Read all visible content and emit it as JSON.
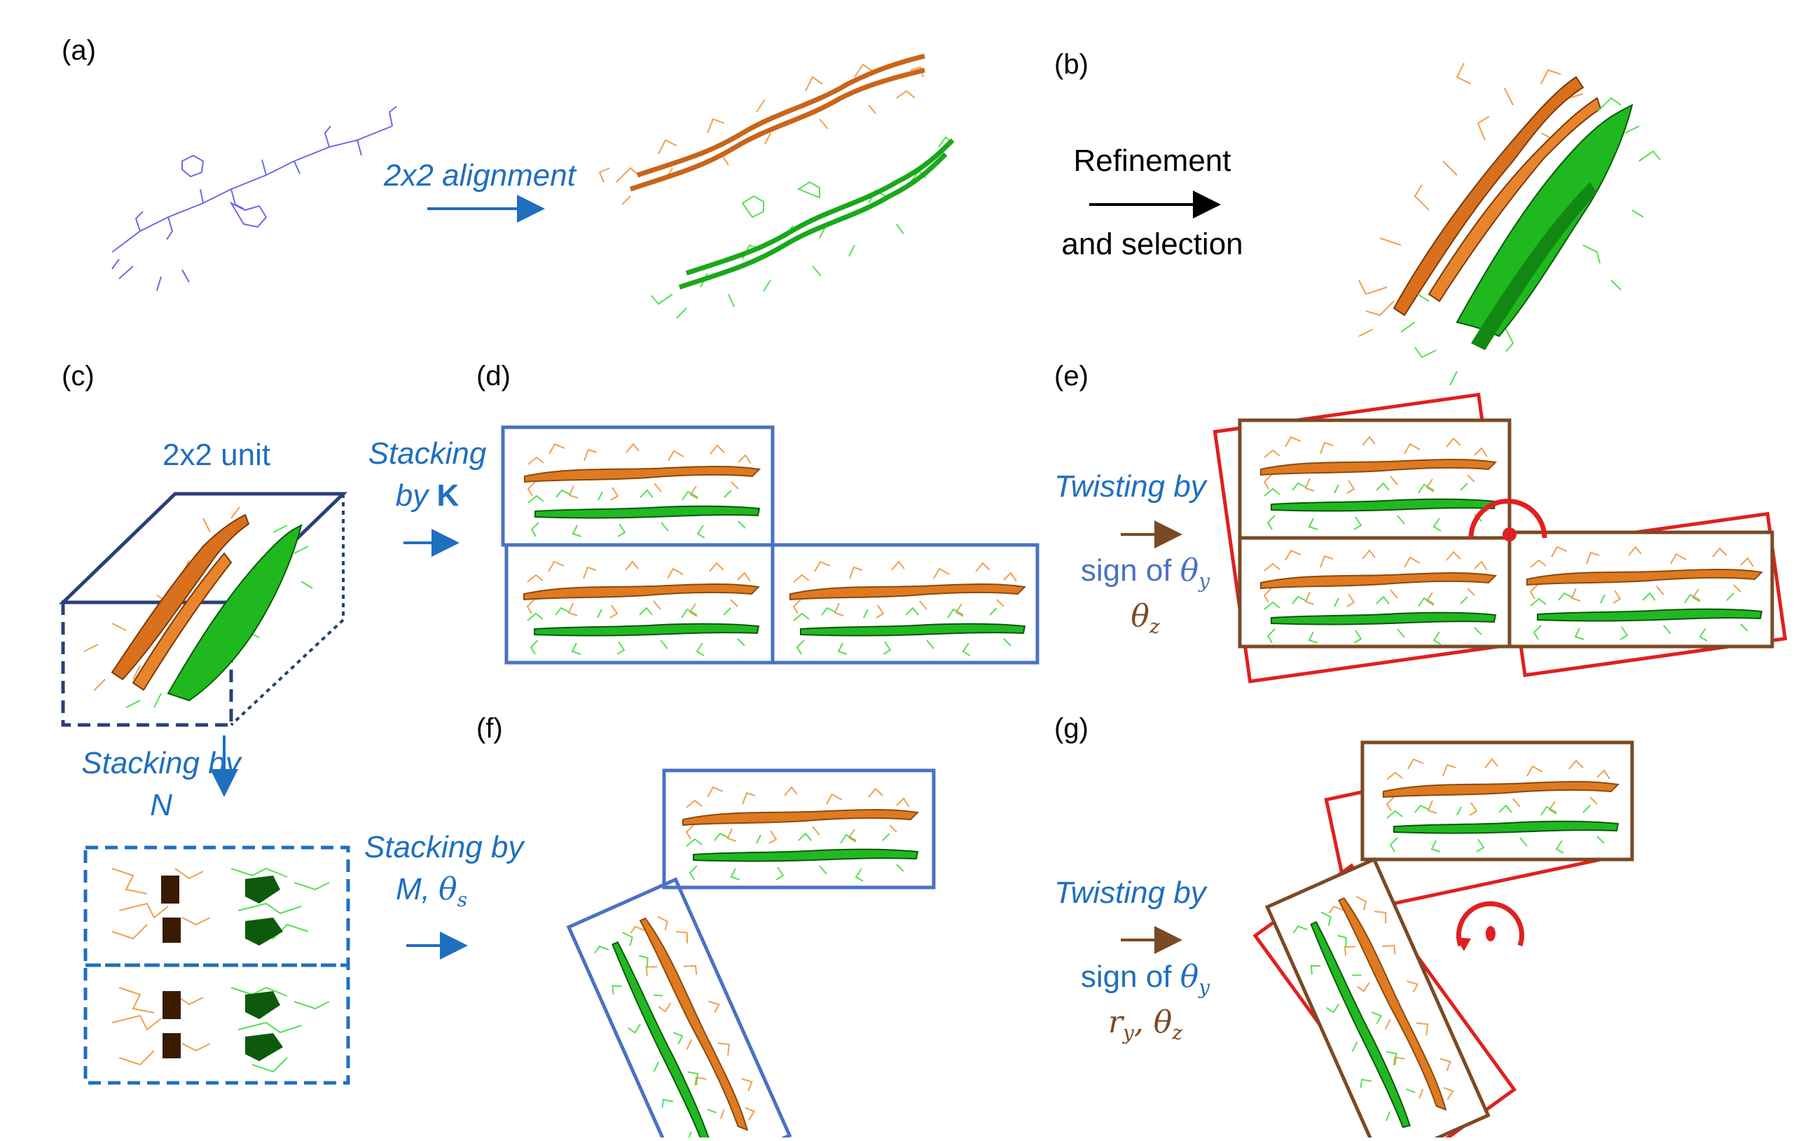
{
  "panels": {
    "a": {
      "label": "(a)",
      "arrow_text": "2x2 alignment"
    },
    "b": {
      "label": "(b)",
      "arrow_text_1": "Refinement",
      "arrow_text_2": "and selection"
    },
    "c": {
      "label": "(c)",
      "unit_text": "2x2 unit",
      "stack_text_1": "Stacking by",
      "stack_text_2": "N"
    },
    "d": {
      "label": "(d)",
      "stack_text_1": "Stacking",
      "stack_text_2": "by",
      "stack_text_bold": "K"
    },
    "e": {
      "label": "(e)",
      "twist_text": "Twisting by",
      "sign_text": "sign of",
      "theta_y": "θ",
      "theta_y_sub": "y",
      "theta_z": "θ",
      "theta_z_sub": "z"
    },
    "f": {
      "label": "(f)",
      "stack_text_1": "Stacking by",
      "stack_text_2": "M, ",
      "theta_s": "θ",
      "theta_s_sub": "s"
    },
    "g": {
      "label": "(g)",
      "twist_text": "Twisting by",
      "sign_text": "sign of",
      "theta_y": "θ",
      "theta_y_sub": "y",
      "r": "r",
      "r_sub": "y",
      "sep": ", ",
      "theta_z": "θ",
      "theta_z_sub": "z"
    }
  },
  "colors": {
    "orange": "#e8842c",
    "green": "#2fc82f",
    "blue_box": "#4a72c4",
    "navy_box": "#2a3f7a",
    "brown_box": "#7a4a24",
    "red_box": "#e02020",
    "text_blue": "#1f6fbf",
    "text_brown": "#7a4a24"
  }
}
